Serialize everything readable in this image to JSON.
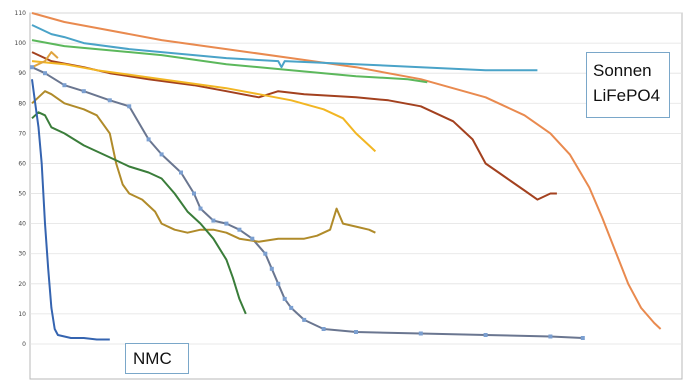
{
  "chart_data": {
    "type": "line",
    "title": "",
    "xlabel": "",
    "ylabel": "",
    "xlim": [
      0,
      100
    ],
    "ylim": [
      0,
      110
    ],
    "yticks": [
      0,
      10,
      20,
      30,
      40,
      50,
      60,
      70,
      80,
      90,
      100,
      110
    ],
    "grid": "horizontal",
    "annotations": [
      {
        "id": "sonnen",
        "lines": [
          "Sonnen",
          "LiFePO4"
        ]
      },
      {
        "id": "nmc",
        "lines": [
          "NMC"
        ]
      }
    ],
    "series": [
      {
        "color": "#e98a4f",
        "values": [
          [
            0,
            110
          ],
          [
            5,
            107
          ],
          [
            10,
            105
          ],
          [
            20,
            101
          ],
          [
            30,
            98
          ],
          [
            40,
            95
          ],
          [
            50,
            92
          ],
          [
            60,
            88
          ],
          [
            70,
            82
          ],
          [
            76,
            76
          ],
          [
            80,
            70
          ],
          [
            83,
            63
          ],
          [
            86,
            52
          ],
          [
            88,
            42
          ],
          [
            90,
            31
          ],
          [
            92,
            20
          ],
          [
            94,
            12
          ],
          [
            96,
            7
          ],
          [
            97,
            5
          ]
        ]
      },
      {
        "color": "#4aa3c8",
        "values": [
          [
            0,
            106
          ],
          [
            3,
            103
          ],
          [
            5,
            102
          ],
          [
            8,
            100
          ],
          [
            15,
            98
          ],
          [
            25,
            96
          ],
          [
            30,
            95
          ],
          [
            38,
            94
          ],
          [
            38.5,
            92
          ],
          [
            39,
            94
          ],
          [
            50,
            93
          ],
          [
            60,
            92
          ],
          [
            70,
            91
          ],
          [
            78,
            91
          ]
        ]
      },
      {
        "color": "#5cb85c",
        "values": [
          [
            0,
            101
          ],
          [
            5,
            99
          ],
          [
            10,
            98
          ],
          [
            20,
            96
          ],
          [
            30,
            93
          ],
          [
            40,
            91
          ],
          [
            50,
            89
          ],
          [
            58,
            88
          ],
          [
            61,
            87
          ]
        ]
      },
      {
        "color": "#a3411f",
        "values": [
          [
            0,
            97
          ],
          [
            3,
            94
          ],
          [
            8,
            92
          ],
          [
            12,
            90
          ],
          [
            18,
            88
          ],
          [
            25,
            86
          ],
          [
            30,
            84
          ],
          [
            35,
            82
          ],
          [
            38,
            84
          ],
          [
            42,
            83
          ],
          [
            50,
            82
          ],
          [
            55,
            81
          ],
          [
            60,
            79
          ],
          [
            65,
            74
          ],
          [
            68,
            68
          ],
          [
            70,
            60
          ],
          [
            72,
            57
          ],
          [
            74,
            54
          ],
          [
            76,
            51
          ],
          [
            78,
            48
          ],
          [
            80,
            50
          ],
          [
            81,
            50
          ]
        ]
      },
      {
        "color": "#f2b623",
        "values": [
          [
            0,
            94
          ],
          [
            5,
            93
          ],
          [
            10,
            91
          ],
          [
            20,
            88
          ],
          [
            30,
            85
          ],
          [
            35,
            83
          ],
          [
            40,
            81
          ],
          [
            45,
            78
          ],
          [
            48,
            75
          ],
          [
            50,
            70
          ],
          [
            52,
            66
          ],
          [
            53,
            64
          ]
        ]
      },
      {
        "color": "#e0a43f",
        "values": [
          [
            0,
            92
          ],
          [
            2,
            94
          ],
          [
            3,
            97
          ],
          [
            4,
            95
          ]
        ]
      },
      {
        "color": "#6a7690",
        "values": [
          [
            0,
            92
          ],
          [
            2,
            90
          ],
          [
            5,
            86
          ],
          [
            8,
            84
          ],
          [
            12,
            81
          ],
          [
            15,
            79
          ],
          [
            18,
            68
          ],
          [
            20,
            63
          ],
          [
            23,
            57
          ],
          [
            25,
            50
          ],
          [
            26,
            45
          ],
          [
            28,
            41
          ],
          [
            30,
            40
          ],
          [
            32,
            38
          ],
          [
            34,
            35
          ],
          [
            36,
            30
          ],
          [
            37,
            25
          ],
          [
            38,
            20
          ],
          [
            39,
            15
          ],
          [
            40,
            12
          ],
          [
            42,
            8
          ],
          [
            45,
            5
          ],
          [
            50,
            4
          ],
          [
            60,
            3.5
          ],
          [
            70,
            3
          ],
          [
            80,
            2.5
          ],
          [
            85,
            2
          ]
        ]
      },
      {
        "color": "#b08b2a",
        "values": [
          [
            0,
            80
          ],
          [
            2,
            84
          ],
          [
            3,
            83
          ],
          [
            5,
            80
          ],
          [
            8,
            78
          ],
          [
            10,
            76
          ],
          [
            12,
            70
          ],
          [
            13,
            60
          ],
          [
            14,
            53
          ],
          [
            15,
            50
          ],
          [
            17,
            48
          ],
          [
            19,
            44
          ],
          [
            20,
            40
          ],
          [
            22,
            38
          ],
          [
            24,
            37
          ],
          [
            26,
            38
          ],
          [
            28,
            38
          ],
          [
            30,
            37
          ],
          [
            32,
            35
          ],
          [
            35,
            34
          ],
          [
            38,
            35
          ],
          [
            42,
            35
          ],
          [
            44,
            36
          ],
          [
            46,
            38
          ],
          [
            47,
            45
          ],
          [
            48,
            40
          ],
          [
            50,
            39
          ],
          [
            52,
            38
          ],
          [
            53,
            37
          ]
        ]
      },
      {
        "color": "#3a7d3a",
        "values": [
          [
            0,
            75
          ],
          [
            1,
            77
          ],
          [
            2,
            76
          ],
          [
            3,
            72
          ],
          [
            5,
            70
          ],
          [
            8,
            66
          ],
          [
            12,
            62
          ],
          [
            15,
            59
          ],
          [
            18,
            57
          ],
          [
            20,
            55
          ],
          [
            22,
            50
          ],
          [
            24,
            44
          ],
          [
            26,
            40
          ],
          [
            28,
            35
          ],
          [
            30,
            28
          ],
          [
            31,
            22
          ],
          [
            32,
            15
          ],
          [
            33,
            10
          ]
        ]
      },
      {
        "color": "#3564b0",
        "values": [
          [
            0,
            88
          ],
          [
            0.5,
            80
          ],
          [
            1,
            72
          ],
          [
            1.5,
            60
          ],
          [
            2,
            40
          ],
          [
            2.5,
            25
          ],
          [
            3,
            12
          ],
          [
            3.5,
            5
          ],
          [
            4,
            3
          ],
          [
            6,
            2
          ],
          [
            8,
            2
          ],
          [
            10,
            1.5
          ],
          [
            12,
            1.5
          ]
        ]
      }
    ]
  }
}
